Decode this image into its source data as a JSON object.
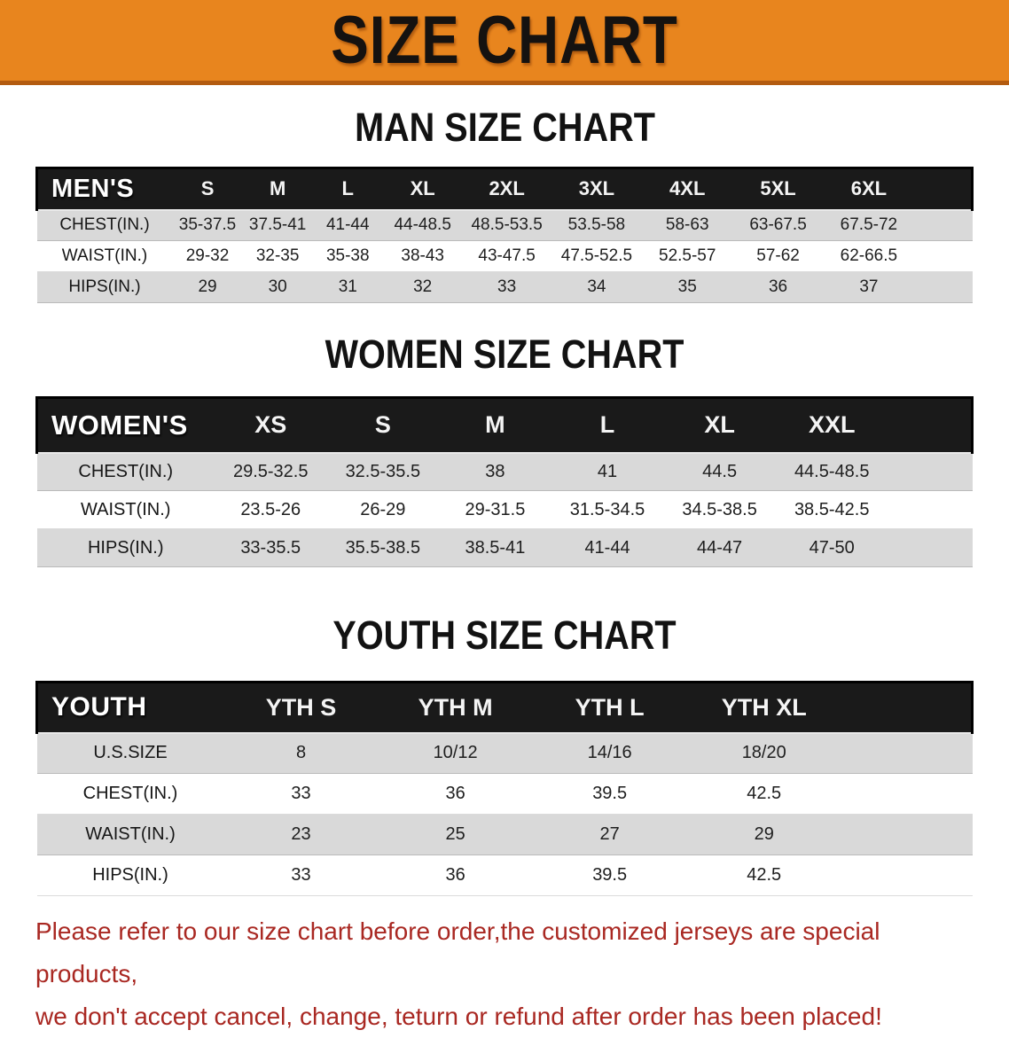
{
  "banner": {
    "title": "SIZE CHART"
  },
  "theme": {
    "banner_bg": "#E8851E",
    "banner_edge": "#B35B10",
    "table_header_bg": "#1A1A1A",
    "row_alt_bg": "#D9D9D9",
    "notice_color": "#A92822"
  },
  "sections": [
    {
      "heading": "MAN SIZE CHART",
      "table": {
        "corner": "MEN'S",
        "columns": [
          "S",
          "M",
          "L",
          "XL",
          "2XL",
          "3XL",
          "4XL",
          "5XL",
          "6XL"
        ],
        "rows": [
          {
            "label": "CHEST(IN.)",
            "values": [
              "35-37.5",
              "37.5-41",
              "41-44",
              "44-48.5",
              "48.5-53.5",
              "53.5-58",
              "58-63",
              "63-67.5",
              "67.5-72"
            ]
          },
          {
            "label": "WAIST(IN.)",
            "values": [
              "29-32",
              "32-35",
              "35-38",
              "38-43",
              "43-47.5",
              "47.5-52.5",
              "52.5-57",
              "57-62",
              "62-66.5"
            ]
          },
          {
            "label": "HIPS(IN.)",
            "values": [
              "29",
              "30",
              "31",
              "32",
              "33",
              "34",
              "35",
              "36",
              "37"
            ]
          }
        ]
      }
    },
    {
      "heading": "WOMEN SIZE CHART",
      "table": {
        "corner": "WOMEN'S",
        "columns": [
          "XS",
          "S",
          "M",
          "L",
          "XL",
          "XXL"
        ],
        "rows": [
          {
            "label": "CHEST(IN.)",
            "values": [
              "29.5-32.5",
              "32.5-35.5",
              "38",
              "41",
              "44.5",
              "44.5-48.5"
            ]
          },
          {
            "label": "WAIST(IN.)",
            "values": [
              "23.5-26",
              "26-29",
              "29-31.5",
              "31.5-34.5",
              "34.5-38.5",
              "38.5-42.5"
            ]
          },
          {
            "label": "HIPS(IN.)",
            "values": [
              "33-35.5",
              "35.5-38.5",
              "38.5-41",
              "41-44",
              "44-47",
              "47-50"
            ]
          }
        ]
      }
    },
    {
      "heading": "YOUTH SIZE CHART",
      "table": {
        "corner": "YOUTH",
        "columns": [
          "YTH S",
          "YTH M",
          "YTH L",
          "YTH XL"
        ],
        "rows": [
          {
            "label": "U.S.SIZE",
            "values": [
              "8",
              "10/12",
              "14/16",
              "18/20"
            ]
          },
          {
            "label": "CHEST(IN.)",
            "values": [
              "33",
              "36",
              "39.5",
              "42.5"
            ]
          },
          {
            "label": "WAIST(IN.)",
            "values": [
              "23",
              "25",
              "27",
              "29"
            ]
          },
          {
            "label": "HIPS(IN.)",
            "values": [
              "33",
              "36",
              "39.5",
              "42.5"
            ]
          }
        ]
      }
    }
  ],
  "footer": {
    "line1": "Please refer to our size chart before order,the customized jerseys are special products,",
    "line2": "we don't accept cancel, change, teturn or refund after order has been placed!"
  }
}
